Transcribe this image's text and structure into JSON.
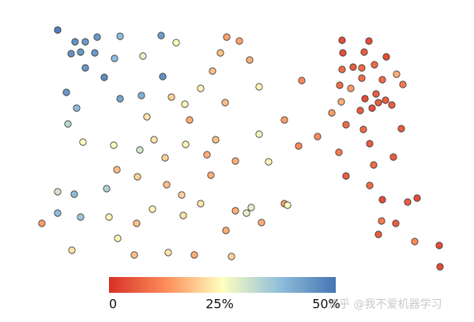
{
  "chart_data": {
    "type": "scatter",
    "x": [
      73,
      95,
      108,
      123,
      90,
      102,
      120,
      108,
      132,
      152,
      145,
      204,
      206,
      181,
      223,
      84,
      97,
      86,
      152,
      179,
      105,
      287,
      303,
      279,
      316,
      269,
      254,
      217,
      234,
      285,
      328,
      382,
      186,
      240,
      360,
      328,
      195,
      235,
      273,
      144,
      177,
      209,
      262,
      298,
      340,
      378,
      402,
      148,
      174,
      267,
      73,
      94,
      135,
      211,
      230,
      193,
      254,
      298,
      318,
      312,
      360,
      364,
      73,
      102,
      138,
      173,
      232,
      53,
      331,
      286,
      149,
      91,
      170,
      213,
      246,
      293,
      433,
      467,
      434,
      461,
      489,
      447,
      433,
      458,
      474,
      502,
      430,
      458,
      484,
      510,
      444,
      432,
      476,
      462,
      479,
      488,
      496,
      471,
      420,
      456,
      438,
      460,
      508,
      468,
      498,
      429,
      473,
      438,
      468,
      484,
      528,
      516,
      483,
      501,
      479,
      525,
      556,
      557
    ],
    "y": [
      370,
      355,
      355,
      361,
      340,
      342,
      341,
      322,
      310,
      362,
      334,
      363,
      311,
      337,
      354,
      291,
      271,
      251,
      283,
      287,
      228,
      361,
      356,
      341,
      332,
      318,
      296,
      285,
      276,
      278,
      298,
      306,
      260,
      256,
      256,
      238,
      231,
      225,
      231,
      224,
      218,
      208,
      212,
      204,
      203,
      223,
      235,
      193,
      184,
      186,
      165,
      162,
      169,
      174,
      161,
      143,
      150,
      141,
      145,
      138,
      150,
      148,
      138,
      133,
      133,
      125,
      135,
      125,
      126,
      116,
      106,
      91,
      85,
      88,
      85,
      83,
      357,
      356,
      341,
      342,
      336,
      323,
      320,
      322,
      326,
      314,
      300,
      309,
      307,
      301,
      296,
      279,
      289,
      283,
      278,
      281,
      275,
      271,
      265,
      268,
      250,
      244,
      245,
      226,
      209,
      215,
      199,
      185,
      173,
      155,
      157,
      152,
      128,
      125,
      111,
      102,
      97,
      70
    ],
    "c": [
      48,
      45,
      44,
      44,
      45,
      44,
      44,
      44,
      46,
      38,
      38,
      43,
      45,
      28,
      25,
      44,
      38,
      33,
      42,
      40,
      25,
      15,
      15,
      18,
      16,
      18,
      24,
      20,
      24,
      18,
      24,
      12,
      22,
      16,
      14,
      26,
      22,
      24,
      18,
      25,
      30,
      20,
      16,
      16,
      24,
      12,
      12,
      18,
      20,
      16,
      30,
      38,
      34,
      18,
      20,
      24,
      22,
      16,
      28,
      28,
      14,
      26,
      38,
      36,
      24,
      18,
      22,
      14,
      16,
      16,
      24,
      22,
      18,
      22,
      16,
      20,
      4,
      4,
      4,
      6,
      4,
      6,
      8,
      8,
      8,
      16,
      8,
      8,
      8,
      10,
      14,
      16,
      6,
      4,
      6,
      6,
      6,
      4,
      14,
      6,
      8,
      8,
      6,
      6,
      6,
      10,
      8,
      6,
      8,
      4,
      4,
      6,
      10,
      6,
      6,
      12,
      4,
      4
    ],
    "xlim": [
      0,
      600
    ],
    "ylim": [
      0,
      408
    ],
    "colormap": [
      "#d73027",
      "#fc8d59",
      "#ffffbf",
      "#91bfdb",
      "#4575b4"
    ],
    "clim": [
      0,
      50
    ],
    "cticks": [
      0,
      {
        "value": 25,
        "label": "25%"
      },
      {
        "value": 50,
        "label": "50%"
      }
    ],
    "watermark": "知乎 @我不爱机器学习"
  }
}
